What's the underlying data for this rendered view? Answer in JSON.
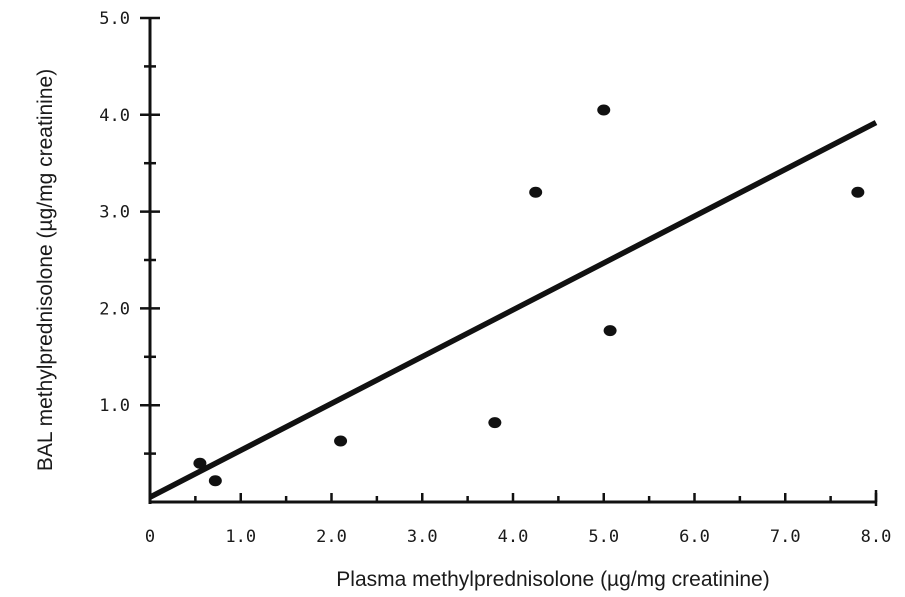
{
  "chart_data": {
    "type": "scatter",
    "xlabel": "Plasma methylprednisolone (µg/mg creatinine)",
    "ylabel": "BAL methylprednisolone (µg/mg creatinine)",
    "xlim": [
      0,
      8.0
    ],
    "ylim": [
      0,
      5.0
    ],
    "x_ticks": [
      "0",
      "1.0",
      "2.0",
      "3.0",
      "4.0",
      "5.0",
      "6.0",
      "7.0",
      "8.0"
    ],
    "y_ticks": [
      "1.0",
      "2.0",
      "3.0",
      "4.0",
      "5.0"
    ],
    "points": [
      {
        "x": 0.55,
        "y": 0.4
      },
      {
        "x": 0.72,
        "y": 0.22
      },
      {
        "x": 2.1,
        "y": 0.63
      },
      {
        "x": 3.8,
        "y": 0.82
      },
      {
        "x": 4.25,
        "y": 3.2
      },
      {
        "x": 5.0,
        "y": 4.05
      },
      {
        "x": 5.07,
        "y": 1.77
      },
      {
        "x": 7.8,
        "y": 3.2
      }
    ],
    "regression": {
      "x": [
        0,
        8.0
      ],
      "y": [
        0.05,
        3.92
      ]
    }
  }
}
